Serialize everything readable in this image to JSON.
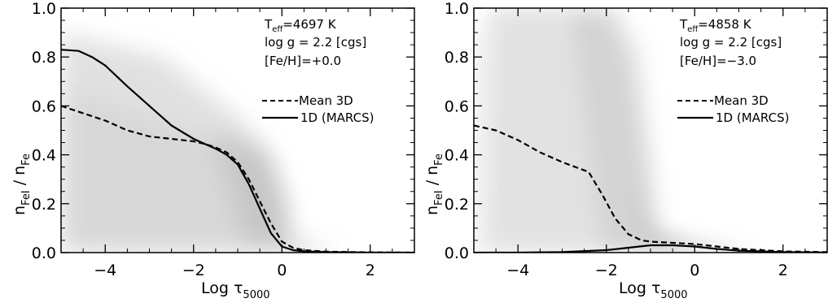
{
  "chart_data": [
    {
      "type": "line",
      "panel": "left",
      "xlabel_main": "Log τ",
      "xlabel_sub": "5000",
      "ylabel": "n",
      "ylabel_parts": [
        "n",
        "FeI",
        " / n",
        "Fe"
      ],
      "xlim": [
        -5,
        3
      ],
      "ylim": [
        0,
        1
      ],
      "xticks": [
        -4,
        -2,
        0,
        2
      ],
      "xtick_labels": [
        "−4",
        "−2",
        "0",
        "2"
      ],
      "yticks": [
        0,
        0.2,
        0.4,
        0.6,
        0.8,
        1.0
      ],
      "ytick_labels": [
        "0.0",
        "0.2",
        "0.4",
        "0.6",
        "0.8",
        "1.0"
      ],
      "annotations": {
        "teff_main": "T",
        "teff_sub": "eff",
        "teff_value": "=4697 K",
        "logg": "log g = 2.2 [cgs]",
        "feh": "[Fe/H]=+0.0"
      },
      "legend_placement": "right",
      "background": "grey 3D distribution",
      "series": [
        {
          "name": "Mean 3D",
          "style": "dashed",
          "x": [
            -5,
            -4.5,
            -4,
            -3.5,
            -3,
            -2.5,
            -2,
            -1.75,
            -1.5,
            -1.25,
            -1,
            -0.75,
            -0.5,
            -0.25,
            0,
            0.25,
            0.5,
            1,
            2,
            3
          ],
          "values": [
            0.6,
            0.57,
            0.54,
            0.5,
            0.475,
            0.465,
            0.455,
            0.445,
            0.43,
            0.41,
            0.37,
            0.3,
            0.21,
            0.12,
            0.045,
            0.02,
            0.01,
            0.004,
            0.001,
            0.0
          ]
        },
        {
          "name": "1D (MARCS)",
          "style": "solid",
          "x": [
            -5,
            -4.6,
            -4.3,
            -4,
            -3.5,
            -3,
            -2.5,
            -2,
            -1.75,
            -1.5,
            -1.25,
            -1,
            -0.75,
            -0.5,
            -0.25,
            0,
            0.25,
            0.5,
            1,
            2,
            3
          ],
          "values": [
            0.83,
            0.825,
            0.8,
            0.765,
            0.68,
            0.6,
            0.52,
            0.465,
            0.445,
            0.425,
            0.4,
            0.36,
            0.28,
            0.18,
            0.08,
            0.025,
            0.01,
            0.005,
            0.002,
            0.0,
            0.0
          ]
        }
      ]
    },
    {
      "type": "line",
      "panel": "right",
      "xlabel_main": "Log τ",
      "xlabel_sub": "5000",
      "ylabel": "n",
      "ylabel_parts": [
        "n",
        "FeI",
        " / n",
        "Fe"
      ],
      "xlim": [
        -5,
        3
      ],
      "ylim": [
        0,
        1
      ],
      "xticks": [
        -4,
        -2,
        0,
        2
      ],
      "xtick_labels": [
        "−4",
        "−2",
        "0",
        "2"
      ],
      "yticks": [
        0,
        0.2,
        0.4,
        0.6,
        0.8,
        1.0
      ],
      "ytick_labels": [
        "0.0",
        "0.2",
        "0.4",
        "0.6",
        "0.8",
        "1.0"
      ],
      "annotations": {
        "teff_main": "T",
        "teff_sub": "eff",
        "teff_value": "=4858 K",
        "logg": "log g = 2.2 [cgs]",
        "feh": "[Fe/H]=−3.0"
      },
      "legend_placement": "right",
      "background": "grey 3D distribution",
      "series": [
        {
          "name": "Mean 3D",
          "style": "dashed",
          "x": [
            -5,
            -4.5,
            -4,
            -3.5,
            -3,
            -2.7,
            -2.4,
            -2.1,
            -1.8,
            -1.5,
            -1.2,
            -1,
            -0.5,
            0,
            0.5,
            1,
            2,
            3
          ],
          "values": [
            0.52,
            0.5,
            0.46,
            0.41,
            0.37,
            0.35,
            0.33,
            0.24,
            0.14,
            0.075,
            0.05,
            0.045,
            0.04,
            0.035,
            0.025,
            0.015,
            0.005,
            0.002
          ]
        },
        {
          "name": "1D (MARCS)",
          "style": "solid",
          "x": [
            -5,
            -4,
            -3,
            -2,
            -1.5,
            -1,
            -0.5,
            0,
            0.5,
            1,
            2,
            3
          ],
          "values": [
            0.0,
            0.0,
            0.002,
            0.01,
            0.02,
            0.03,
            0.03,
            0.025,
            0.015,
            0.008,
            0.002,
            0.0
          ]
        }
      ]
    }
  ]
}
